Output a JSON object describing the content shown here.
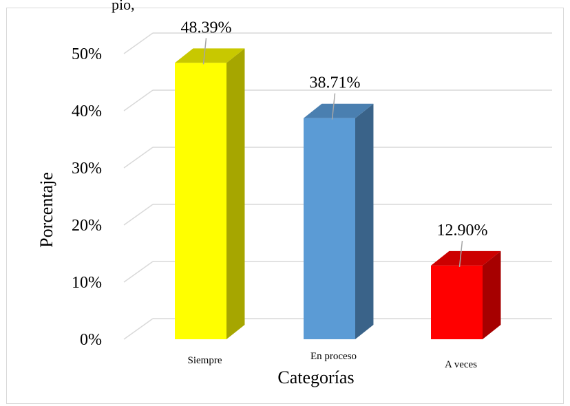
{
  "top_text": "pio, ",
  "chart_data": {
    "type": "bar",
    "categories": [
      "Siempre",
      "En proceso",
      "A veces"
    ],
    "values": [
      48.39,
      38.71,
      12.9
    ],
    "data_labels": [
      "48.39%",
      "38.71%",
      "12.90%"
    ],
    "xlabel": "Categorías",
    "ylabel": "Porcentaje",
    "ylim": [
      0,
      50
    ],
    "yticks": [
      "0%",
      "10%",
      "20%",
      "30%",
      "40%",
      "50%"
    ],
    "grid": true,
    "three_d": true,
    "colors": [
      {
        "front": "#ffff00",
        "side": "#a6a600",
        "top": "#c8c800"
      },
      {
        "front": "#5b9bd5",
        "side": "#3a6389",
        "top": "#4a7fb0"
      },
      {
        "front": "#ff0000",
        "side": "#a60000",
        "top": "#cc0000"
      }
    ],
    "gridline_color": "#d9d9d9"
  }
}
